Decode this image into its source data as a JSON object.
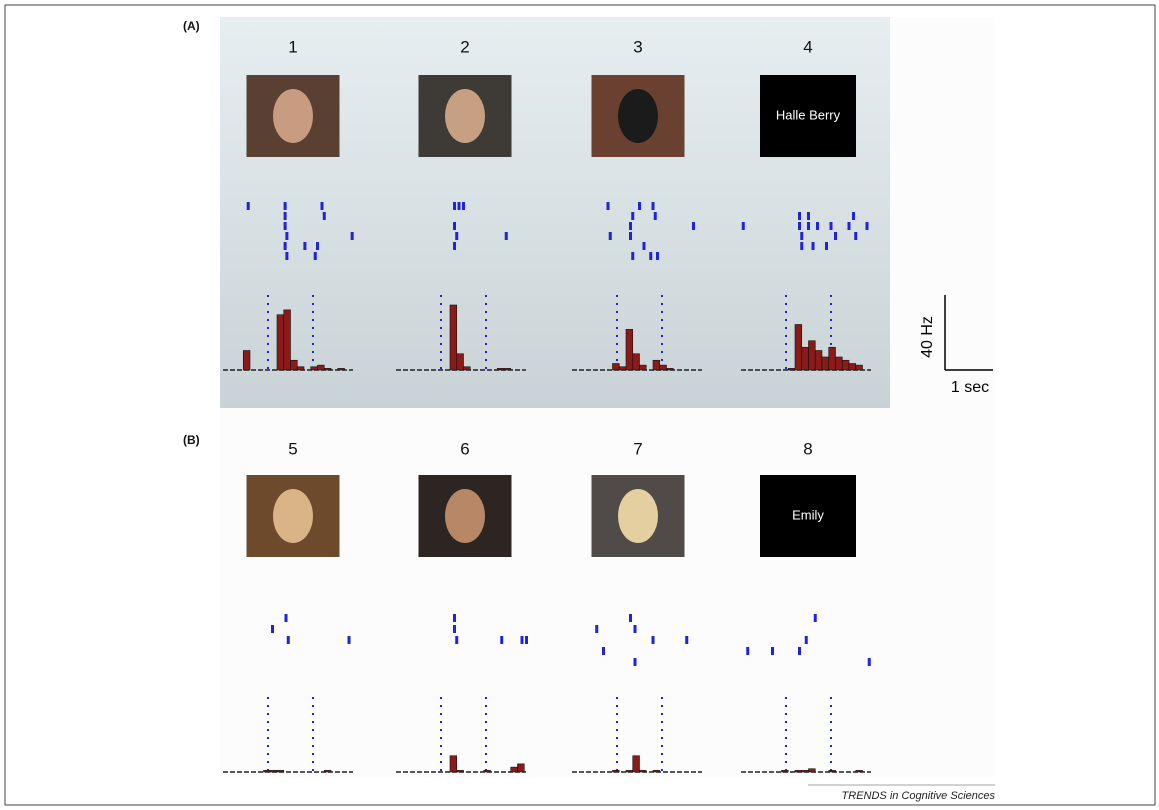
{
  "figure": {
    "panels": [
      {
        "label": "(A)",
        "items": [
          {
            "number": "1",
            "raster": [
              [
                -0.44,
                0
              ],
              [
                0.38,
                0
              ],
              [
                0.38,
                1
              ],
              [
                0.38,
                2
              ],
              [
                0.42,
                3
              ],
              [
                0.38,
                4
              ],
              [
                0.42,
                5
              ],
              [
                1.2,
                0
              ],
              [
                1.25,
                1
              ],
              [
                1.87,
                3
              ],
              [
                0.82,
                4
              ],
              [
                1.1,
                4
              ],
              [
                1.05,
                5
              ]
            ],
            "histogram": [
              0,
              0,
              0,
              12,
              0,
              0,
              0,
              0,
              34,
              37,
              6,
              2,
              0,
              2,
              3,
              1,
              0,
              1,
              0
            ]
          },
          {
            "number": "2",
            "raster": [
              [
                0.3,
                0
              ],
              [
                0.4,
                0
              ],
              [
                0.5,
                0
              ],
              [
                0.3,
                2
              ],
              [
                0.35,
                3
              ],
              [
                0.3,
                4
              ],
              [
                1.45,
                3
              ]
            ],
            "histogram": [
              0,
              0,
              0,
              0,
              0,
              0,
              0,
              0,
              40,
              10,
              2,
              0,
              0,
              0,
              0,
              1,
              1,
              0,
              0
            ]
          },
          {
            "number": "3",
            "raster": [
              [
                -0.2,
                0
              ],
              [
                0.35,
                1
              ],
              [
                0.3,
                3
              ],
              [
                0.35,
                5
              ],
              [
                0.5,
                0
              ],
              [
                0.8,
                0
              ],
              [
                0.85,
                1
              ],
              [
                0.3,
                2
              ],
              [
                0.6,
                4
              ],
              [
                0.75,
                5
              ],
              [
                1.7,
                2
              ],
              [
                -0.15,
                3
              ],
              [
                0.9,
                5
              ]
            ],
            "histogram": [
              0,
              0,
              0,
              0,
              0,
              0,
              4,
              2,
              25,
              10,
              3,
              0,
              6,
              3,
              1,
              0,
              0,
              0,
              0
            ]
          },
          {
            "number": "4",
            "caption": "Halle Berry",
            "raster": [
              [
                0.3,
                1
              ],
              [
                0.5,
                1
              ],
              [
                1.5,
                1
              ],
              [
                0.3,
                2
              ],
              [
                0.5,
                2
              ],
              [
                0.7,
                2
              ],
              [
                1.0,
                2
              ],
              [
                1.4,
                2
              ],
              [
                0.35,
                3
              ],
              [
                1.1,
                3
              ],
              [
                1.55,
                3
              ],
              [
                0.35,
                4
              ],
              [
                0.6,
                4
              ],
              [
                0.9,
                4
              ],
              [
                -0.95,
                2
              ],
              [
                1.8,
                2
              ]
            ],
            "histogram": [
              0,
              0,
              0,
              0,
              0,
              0,
              0,
              1,
              28,
              14,
              18,
              12,
              8,
              14,
              8,
              6,
              4,
              3,
              0
            ]
          }
        ]
      },
      {
        "label": "(B)",
        "items": [
          {
            "number": "5",
            "raster": [
              [
                0.4,
                0
              ],
              [
                0.1,
                1
              ],
              [
                0.45,
                2
              ],
              [
                1.8,
                2
              ]
            ],
            "histogram": [
              0,
              0,
              0,
              0,
              0,
              0,
              1,
              1,
              1,
              0,
              0,
              0,
              0,
              0,
              0,
              1,
              0,
              0,
              0
            ]
          },
          {
            "number": "6",
            "raster": [
              [
                0.3,
                0
              ],
              [
                0.3,
                1
              ],
              [
                0.35,
                2
              ],
              [
                1.35,
                2
              ],
              [
                1.8,
                2
              ],
              [
                1.9,
                2
              ]
            ],
            "histogram": [
              0,
              0,
              0,
              0,
              0,
              0,
              0,
              0,
              10,
              1,
              0,
              0,
              0,
              1,
              0,
              0,
              0,
              3,
              5
            ]
          },
          {
            "number": "7",
            "raster": [
              [
                -0.45,
                1
              ],
              [
                0.3,
                0
              ],
              [
                0.4,
                1
              ],
              [
                0.8,
                2
              ],
              [
                1.55,
                2
              ],
              [
                -0.3,
                3
              ],
              [
                0.4,
                4
              ]
            ],
            "histogram": [
              0,
              0,
              0,
              0,
              0,
              0,
              1,
              0,
              1,
              10,
              1,
              0,
              1,
              0,
              0,
              0,
              0,
              0,
              0
            ]
          },
          {
            "number": "8",
            "caption": "Emily",
            "raster": [
              [
                0.65,
                0
              ],
              [
                0.45,
                2
              ],
              [
                -0.85,
                3
              ],
              [
                -0.3,
                3
              ],
              [
                0.3,
                3
              ],
              [
                1.85,
                4
              ]
            ],
            "histogram": [
              0,
              0,
              0,
              0,
              0,
              0,
              1,
              0,
              1,
              1,
              2,
              0,
              0,
              1,
              0,
              0,
              0,
              1,
              0
            ]
          }
        ]
      }
    ],
    "scale_bar": {
      "rate": "40 Hz",
      "time": "1 sec"
    },
    "footer": "TRENDS in Cognitive Sciences"
  }
}
